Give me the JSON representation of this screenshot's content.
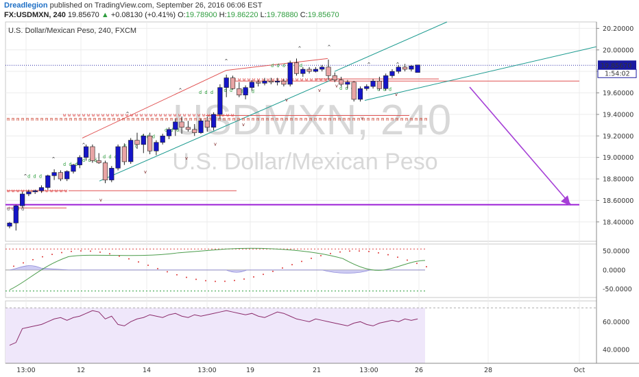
{
  "header": {
    "author": "Dreadlegion",
    "published": "published on TradingView.com, September 26, 2016 06:06 EST",
    "symbol": "FX:USDMXN, 240",
    "last": "19.85670",
    "change": "+0.08130 (+0.41%)",
    "o_label": "O:",
    "o": "19.78900",
    "h_label": "H:",
    "h": "19.86220",
    "l_label": "L:",
    "l": "19.78880",
    "c_label": "C:",
    "c": "19.85670"
  },
  "chart_data": [
    {
      "type": "candlestick",
      "title": "U.S. Dollar/Mexican Peso, 240, FXCM",
      "watermark_symbol": "USDMXN, 240",
      "watermark_name": "U.S. Dollar/Mexican Peso",
      "ylim": [
        18.22,
        20.26
      ],
      "yticks": [
        "20.20000",
        "20.00000",
        "19.80000",
        "19.60000",
        "19.40000",
        "19.20000",
        "19.00000",
        "18.80000",
        "18.60000",
        "18.40000"
      ],
      "xticks": [
        "13:00",
        "12",
        "14",
        "13:00",
        "19",
        "21",
        "13:00",
        "26",
        "28",
        "Oct"
      ],
      "price_label": "19.85670",
      "countdown_label": "1:54:02",
      "candles": [
        [
          18.36,
          18.4,
          18.34,
          18.39
        ],
        [
          18.39,
          18.56,
          18.32,
          18.55
        ],
        [
          18.55,
          18.68,
          18.53,
          18.66
        ],
        [
          18.66,
          18.7,
          18.64,
          18.68
        ],
        [
          18.68,
          18.7,
          18.66,
          18.69
        ],
        [
          18.69,
          18.74,
          18.67,
          18.72
        ],
        [
          18.72,
          18.84,
          18.7,
          18.83
        ],
        [
          18.83,
          18.89,
          18.79,
          18.86
        ],
        [
          18.86,
          18.88,
          18.78,
          18.8
        ],
        [
          18.8,
          18.88,
          18.78,
          18.87
        ],
        [
          18.87,
          18.94,
          18.85,
          18.93
        ],
        [
          18.93,
          19.02,
          18.9,
          19.0
        ],
        [
          19.0,
          19.12,
          18.97,
          19.1
        ],
        [
          19.1,
          19.12,
          18.95,
          18.97
        ],
        [
          18.97,
          19.04,
          18.94,
          18.95
        ],
        [
          18.95,
          18.97,
          18.76,
          18.79
        ],
        [
          18.79,
          18.92,
          18.77,
          18.9
        ],
        [
          18.9,
          19.12,
          18.88,
          19.1
        ],
        [
          19.1,
          19.13,
          18.93,
          18.96
        ],
        [
          18.96,
          19.18,
          18.94,
          19.16
        ],
        [
          19.16,
          19.23,
          19.08,
          19.12
        ],
        [
          19.12,
          19.22,
          19.04,
          19.2
        ],
        [
          19.2,
          19.23,
          19.03,
          19.06
        ],
        [
          19.06,
          19.16,
          19.02,
          19.14
        ],
        [
          19.14,
          19.22,
          19.12,
          19.2
        ],
        [
          19.2,
          19.28,
          19.17,
          19.26
        ],
        [
          19.26,
          19.36,
          19.2,
          19.33
        ],
        [
          19.33,
          19.38,
          19.22,
          19.28
        ],
        [
          19.28,
          19.34,
          19.24,
          19.26
        ],
        [
          19.26,
          19.31,
          19.2,
          19.23
        ],
        [
          19.23,
          19.36,
          19.22,
          19.34
        ],
        [
          19.34,
          19.38,
          19.24,
          19.28
        ],
        [
          19.28,
          19.42,
          19.25,
          19.4
        ],
        [
          19.4,
          19.68,
          19.36,
          19.65
        ],
        [
          19.65,
          19.77,
          19.56,
          19.74
        ],
        [
          19.74,
          19.76,
          19.63,
          19.64
        ],
        [
          19.64,
          19.7,
          19.56,
          19.58
        ],
        [
          19.58,
          19.67,
          19.54,
          19.65
        ],
        [
          19.65,
          19.72,
          19.62,
          19.7
        ],
        [
          19.7,
          19.72,
          19.66,
          19.69
        ],
        [
          19.69,
          19.74,
          19.67,
          19.71
        ],
        [
          19.71,
          19.74,
          19.68,
          19.7
        ],
        [
          19.7,
          19.74,
          19.67,
          19.71
        ],
        [
          19.71,
          19.73,
          19.66,
          19.68
        ],
        [
          19.68,
          19.9,
          19.66,
          19.88
        ],
        [
          19.88,
          19.92,
          19.76,
          19.78
        ],
        [
          19.78,
          19.84,
          19.75,
          19.82
        ],
        [
          19.82,
          19.84,
          19.78,
          19.8
        ],
        [
          19.8,
          19.84,
          19.79,
          19.82
        ],
        [
          19.82,
          19.86,
          19.8,
          19.84
        ],
        [
          19.84,
          19.91,
          19.72,
          19.76
        ],
        [
          19.76,
          19.79,
          19.7,
          19.72
        ],
        [
          19.72,
          19.75,
          19.66,
          19.68
        ],
        [
          19.68,
          19.72,
          19.64,
          19.7
        ],
        [
          19.7,
          19.71,
          19.52,
          19.54
        ],
        [
          19.54,
          19.66,
          19.52,
          19.64
        ],
        [
          19.64,
          19.68,
          19.62,
          19.66
        ],
        [
          19.66,
          19.73,
          19.64,
          19.71
        ],
        [
          19.71,
          19.75,
          19.62,
          19.64
        ],
        [
          19.64,
          19.78,
          19.62,
          19.76
        ],
        [
          19.76,
          19.82,
          19.74,
          19.8
        ],
        [
          19.8,
          19.86,
          19.78,
          19.84
        ],
        [
          19.84,
          19.87,
          19.8,
          19.82
        ],
        [
          19.82,
          19.86,
          19.8,
          19.85
        ],
        [
          19.79,
          19.86,
          19.79,
          19.86
        ]
      ]
    },
    {
      "type": "line",
      "yticks": [
        "50.0000",
        "0.0000",
        "-50.0000"
      ],
      "ylim": [
        -72,
        68
      ]
    },
    {
      "type": "line",
      "yticks": [
        "60.0000",
        "40.0000"
      ],
      "ylim": [
        30,
        75
      ]
    }
  ],
  "colors": {
    "up": "#1515c8",
    "down": "#e8a5a5",
    "support_line": "#9b1fd6",
    "trend": "#1a9a8f",
    "resistance": "#e05050",
    "arrow": "#a53fd6"
  }
}
